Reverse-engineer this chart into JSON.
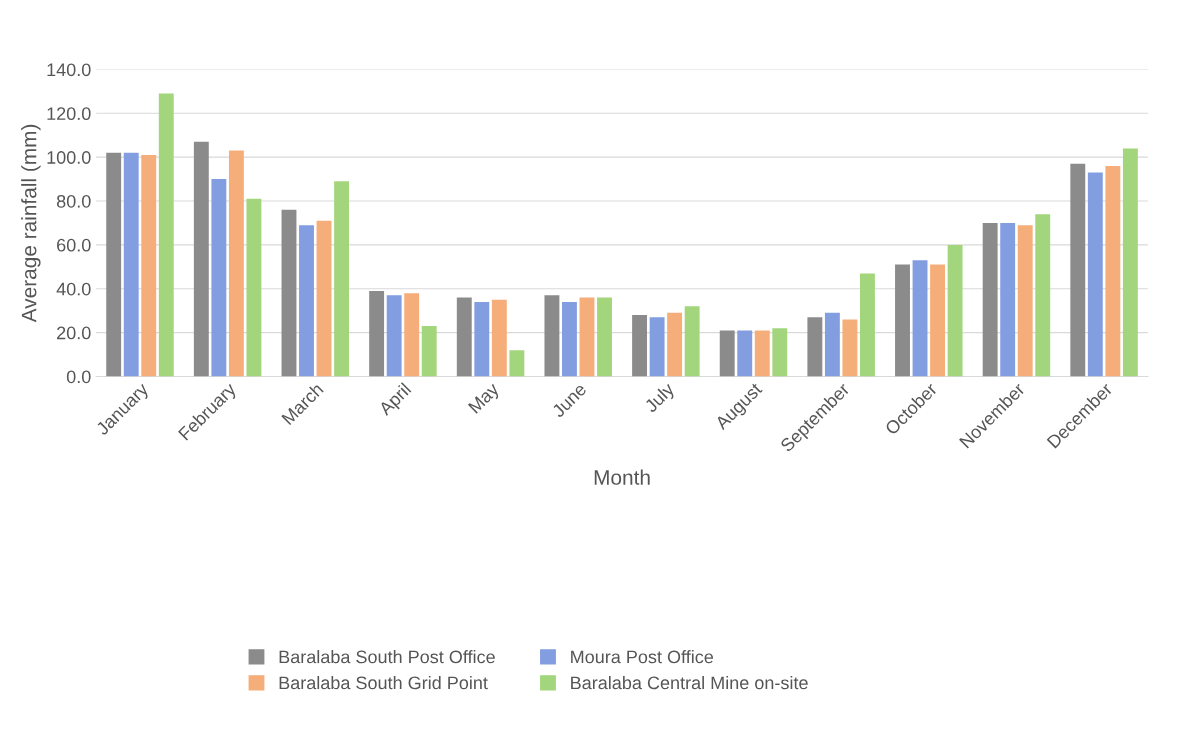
{
  "chart_data": {
    "type": "bar",
    "xlabel": "Month",
    "ylabel": "Average rainfall (mm)",
    "categories": [
      "January",
      "February",
      "March",
      "April",
      "May",
      "June",
      "July",
      "August",
      "September",
      "October",
      "November",
      "December"
    ],
    "series": [
      {
        "name": "Baralaba South Post Office",
        "color": "#8b8b8b",
        "values": [
          102,
          107,
          76,
          39,
          36,
          37,
          28,
          21,
          27,
          51,
          70,
          97
        ]
      },
      {
        "name": "Moura Post Office",
        "color": "#829ee0",
        "values": [
          102,
          90,
          69,
          37,
          34,
          34,
          27,
          21,
          29,
          53,
          70,
          93
        ]
      },
      {
        "name": "Baralaba South Grid Point",
        "color": "#f5ad7a",
        "values": [
          101,
          103,
          71,
          38,
          35,
          36,
          29,
          21,
          26,
          51,
          69,
          96
        ]
      },
      {
        "name": "Baralaba Central Mine on-site",
        "color": "#a3d67c",
        "values": [
          129,
          81,
          89,
          23,
          12,
          36,
          32,
          22,
          47,
          60,
          74,
          104
        ]
      }
    ],
    "ylim": [
      0,
      140
    ],
    "yticks": [
      {
        "value": 0,
        "label": "0.0"
      },
      {
        "value": 20,
        "label": "20.0"
      },
      {
        "value": 40,
        "label": "40.0"
      },
      {
        "value": 60,
        "label": "60.0"
      },
      {
        "value": 80,
        "label": "80.0"
      },
      {
        "value": 100,
        "label": "100.0"
      },
      {
        "value": 120,
        "label": "120.0"
      },
      {
        "value": 140,
        "label": "140.0"
      }
    ],
    "grid": "y",
    "legend": "bottom"
  }
}
